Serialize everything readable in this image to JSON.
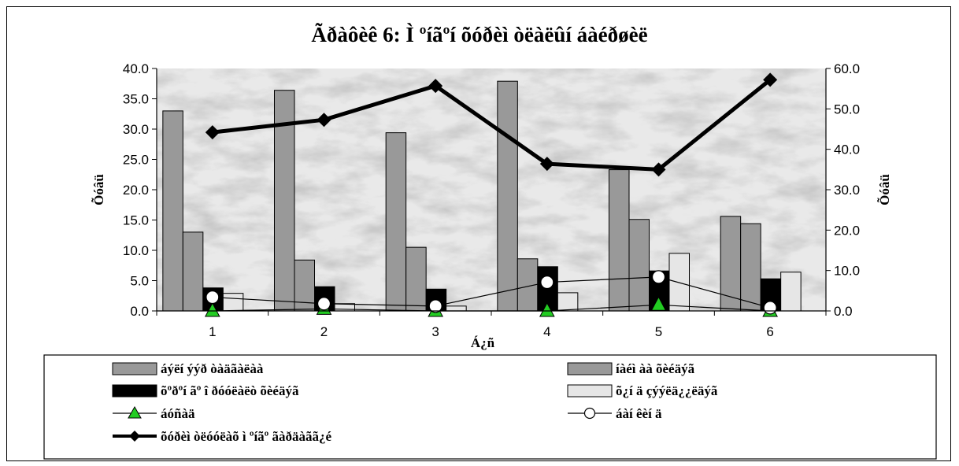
{
  "chart_data": {
    "type": "bar",
    "title": "Ãðàôèê 6: Ì ºíãºí õóðèì òëàëûí áàéðøèë",
    "xlabel": "Á¿ñ",
    "ylabel_left": "Õóâü",
    "ylabel_right": "Õóâü",
    "categories": [
      "1",
      "2",
      "3",
      "4",
      "5",
      "6"
    ],
    "ylim_left": [
      0,
      40
    ],
    "ylim_right": [
      0,
      60
    ],
    "yticks_left": [
      "0.0",
      "5.0",
      "10.0",
      "15.0",
      "20.0",
      "25.0",
      "30.0",
      "35.0",
      "40.0"
    ],
    "yticks_right": [
      "0.0",
      "10.0",
      "20.0",
      "30.0",
      "40.0",
      "50.0",
      "60.0"
    ],
    "bar_series": [
      {
        "name": "áýëí ýýð òàäãàëàà",
        "color": "#999999",
        "values": [
          33.0,
          36.4,
          29.4,
          37.9,
          23.3,
          15.6
        ]
      },
      {
        "name": "íàéì àà õèéäýã",
        "color": "#999999",
        "values": [
          13.0,
          8.4,
          10.5,
          8.6,
          15.1,
          14.4
        ]
      },
      {
        "name": "õºðºí ãº î ðóóëàëò õèéäýã",
        "color": "#000000",
        "values": [
          3.8,
          4.0,
          3.6,
          7.3,
          6.6,
          5.3
        ]
      },
      {
        "name": "õ¿í ä çýýëä¿¿ëäýã",
        "color": "#e6e6e6",
        "values": [
          2.9,
          1.2,
          0.8,
          3.0,
          9.5,
          6.4
        ]
      }
    ],
    "line_series": [
      {
        "name": "áóñàä",
        "axis": "right",
        "marker": "triangle",
        "color": "#000000",
        "marker_fill": "#22cc22",
        "values": [
          0.0,
          0.5,
          0.0,
          0.0,
          1.5,
          0.0
        ]
      },
      {
        "name": "áàí êèí ä",
        "axis": "right",
        "marker": "circle",
        "color": "#000000",
        "marker_fill": "#ffffff",
        "values": [
          3.4,
          1.8,
          1.2,
          7.1,
          8.4,
          0.8
        ]
      },
      {
        "name": "õóðèì òëóóëàõ ì ºíãº ãàðäàãã¿é",
        "axis": "right",
        "marker": "diamond",
        "color": "#000000",
        "marker_fill": "#000000",
        "values": [
          44.2,
          47.3,
          55.7,
          36.4,
          35.0,
          57.2
        ]
      }
    ],
    "legend_position": "bottom",
    "grid": false
  }
}
